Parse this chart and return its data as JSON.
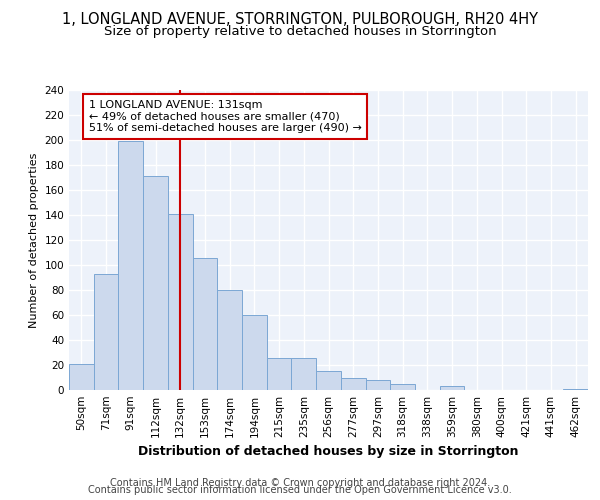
{
  "title": "1, LONGLAND AVENUE, STORRINGTON, PULBOROUGH, RH20 4HY",
  "subtitle": "Size of property relative to detached houses in Storrington",
  "xlabel": "Distribution of detached houses by size in Storrington",
  "ylabel": "Number of detached properties",
  "bar_color": "#ccd9ed",
  "bar_edge_color": "#7ba7d4",
  "categories": [
    "50sqm",
    "71sqm",
    "91sqm",
    "112sqm",
    "132sqm",
    "153sqm",
    "174sqm",
    "194sqm",
    "215sqm",
    "235sqm",
    "256sqm",
    "277sqm",
    "297sqm",
    "318sqm",
    "338sqm",
    "359sqm",
    "380sqm",
    "400sqm",
    "421sqm",
    "441sqm",
    "462sqm"
  ],
  "values": [
    21,
    93,
    199,
    171,
    141,
    106,
    80,
    60,
    26,
    26,
    15,
    10,
    8,
    5,
    0,
    3,
    0,
    0,
    0,
    0,
    1
  ],
  "vline_x_idx": 4,
  "vline_color": "#cc0000",
  "annotation_line1": "1 LONGLAND AVENUE: 131sqm",
  "annotation_line2": "← 49% of detached houses are smaller (470)",
  "annotation_line3": "51% of semi-detached houses are larger (490) →",
  "annotation_box_color": "#ffffff",
  "annotation_box_edge": "#cc0000",
  "ylim": [
    0,
    240
  ],
  "yticks": [
    0,
    20,
    40,
    60,
    80,
    100,
    120,
    140,
    160,
    180,
    200,
    220,
    240
  ],
  "footer1": "Contains HM Land Registry data © Crown copyright and database right 2024.",
  "footer2": "Contains public sector information licensed under the Open Government Licence v3.0.",
  "background_color": "#edf2fa",
  "grid_color": "#ffffff",
  "title_fontsize": 10.5,
  "subtitle_fontsize": 9.5,
  "ylabel_fontsize": 8,
  "xlabel_fontsize": 9,
  "tick_fontsize": 7.5,
  "footer_fontsize": 7,
  "annot_fontsize": 8
}
